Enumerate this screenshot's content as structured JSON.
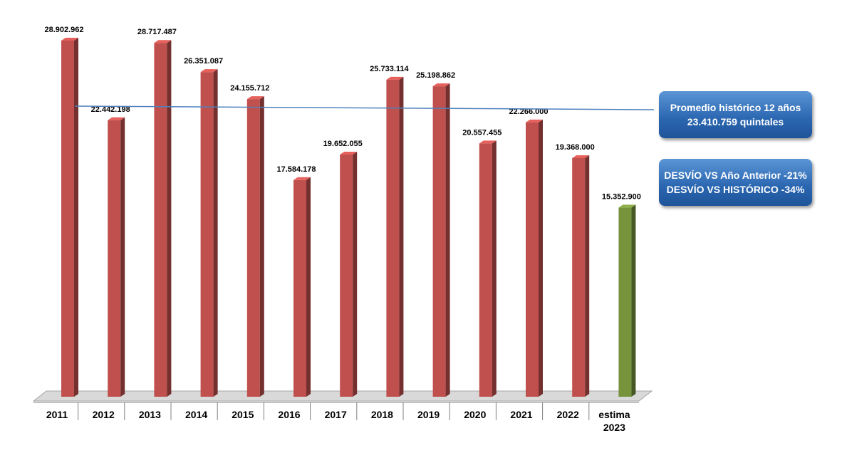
{
  "chart_data": {
    "type": "bar",
    "categories": [
      "2011",
      "2012",
      "2013",
      "2014",
      "2015",
      "2016",
      "2017",
      "2018",
      "2019",
      "2020",
      "2021",
      "2022",
      "estima 2023"
    ],
    "values": [
      28902962,
      22442198,
      28717487,
      26351087,
      24155712,
      17584178,
      19652055,
      25733114,
      25198862,
      20557455,
      22266000,
      19368000,
      15352900
    ],
    "value_labels": [
      "28.902.962",
      "22.442.198",
      "28.717.487",
      "26.351.087",
      "24.155.712",
      "17.584.178",
      "19.652.055",
      "25.733.114",
      "25.198.862",
      "20.557.455",
      "22.266.000",
      "19.368.000",
      "15.352.900"
    ],
    "colors": [
      "#c0504d",
      "#c0504d",
      "#c0504d",
      "#c0504d",
      "#c0504d",
      "#c0504d",
      "#c0504d",
      "#c0504d",
      "#c0504d",
      "#c0504d",
      "#c0504d",
      "#c0504d",
      "#77933c"
    ],
    "average": {
      "label": "Promedio  histórico 12 años",
      "value": 23410759,
      "value_label": "23.410.759 quintales",
      "color": "#4f81bd"
    },
    "annotations": [
      "DESVÍO VS Año Anterior -21%",
      "DESVÍO VS HISTÓRICO  -34%"
    ]
  }
}
